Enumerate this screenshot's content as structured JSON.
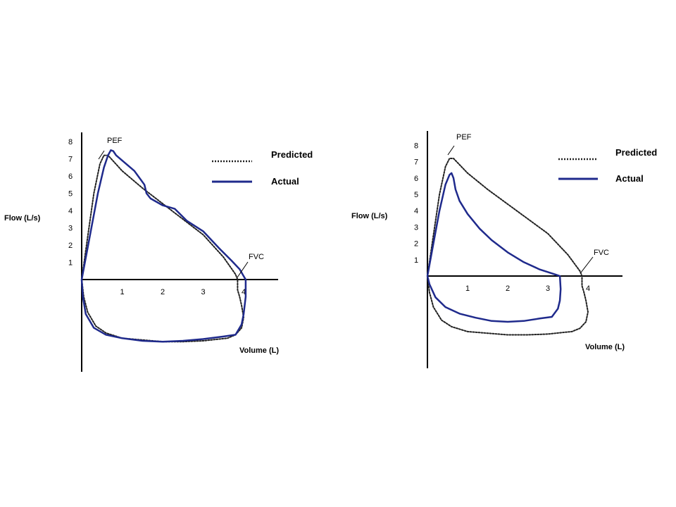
{
  "colors": {
    "predicted": "#222222",
    "actual": "#1f2a8c",
    "axis": "#000000"
  },
  "chart_data": [
    {
      "type": "line",
      "title": "",
      "xlabel": "Volume (L)",
      "ylabel": "Flow (L/s)",
      "xticks": [
        "1",
        "2",
        "3",
        "4"
      ],
      "yticks": [
        "1",
        "2",
        "3",
        "4",
        "5",
        "6",
        "7",
        "8"
      ],
      "xlim": [
        0,
        4.7
      ],
      "ylim": [
        -5.3,
        8.4
      ],
      "legend": {
        "position": "top-right",
        "items": [
          "Predicted",
          "Actual"
        ]
      },
      "annotations": [
        "PEF",
        "FVC"
      ],
      "series": [
        {
          "name": "Predicted",
          "style": "dotted",
          "x": [
            0,
            0.15,
            0.3,
            0.45,
            0.55,
            0.65,
            1.0,
            1.5,
            2.0,
            2.5,
            3.0,
            3.5,
            3.8,
            3.85,
            3.85,
            3.9,
            3.95,
            4.0,
            3.95,
            3.8,
            3.6,
            3.4,
            3.0,
            2.5,
            2.0,
            1.5,
            1.0,
            0.6,
            0.35,
            0.15,
            0.05,
            0
          ],
          "y": [
            0,
            2.5,
            5.0,
            6.7,
            7.2,
            7.2,
            6.3,
            5.3,
            4.4,
            3.5,
            2.6,
            1.3,
            0.3,
            0,
            -0.6,
            -1.0,
            -1.5,
            -2.2,
            -2.8,
            -3.2,
            -3.4,
            -3.45,
            -3.55,
            -3.6,
            -3.6,
            -3.5,
            -3.4,
            -3.1,
            -2.7,
            -1.9,
            -1.0,
            0
          ]
        },
        {
          "name": "Actual",
          "style": "solid",
          "x": [
            0,
            0.2,
            0.4,
            0.55,
            0.65,
            0.72,
            0.78,
            0.85,
            1.0,
            1.3,
            1.55,
            1.6,
            1.7,
            2.0,
            2.3,
            2.6,
            3.0,
            3.4,
            3.7,
            3.9,
            4.0,
            4.05,
            4.05,
            4.0,
            3.95,
            3.8,
            3.5,
            3.0,
            2.5,
            2.0,
            1.5,
            1.0,
            0.6,
            0.3,
            0.1,
            0.03,
            0
          ],
          "y": [
            0,
            2.5,
            5.0,
            6.5,
            7.2,
            7.5,
            7.45,
            7.2,
            6.9,
            6.3,
            5.5,
            5.0,
            4.7,
            4.3,
            4.1,
            3.4,
            2.8,
            1.8,
            1.1,
            0.6,
            0.2,
            0,
            -1.0,
            -2.0,
            -2.6,
            -3.2,
            -3.3,
            -3.45,
            -3.55,
            -3.6,
            -3.55,
            -3.4,
            -3.2,
            -2.8,
            -2.0,
            -1.0,
            0
          ]
        }
      ]
    },
    {
      "type": "line",
      "title": "",
      "xlabel": "Volume (L)",
      "ylabel": "Flow (L/s)",
      "xticks": [
        "1",
        "2",
        "3",
        "4"
      ],
      "yticks": [
        "1",
        "2",
        "3",
        "4",
        "5",
        "6",
        "7",
        "8"
      ],
      "xlim": [
        0,
        4.7
      ],
      "ylim": [
        -5.3,
        8.4
      ],
      "legend": {
        "position": "top-right",
        "items": [
          "Predicted",
          "Actual"
        ]
      },
      "annotations": [
        "PEF",
        "FVC"
      ],
      "series": [
        {
          "name": "Predicted",
          "style": "dotted",
          "x": [
            0,
            0.15,
            0.3,
            0.45,
            0.55,
            0.65,
            1.0,
            1.5,
            2.0,
            2.5,
            3.0,
            3.5,
            3.8,
            3.85,
            3.85,
            3.9,
            3.95,
            4.0,
            3.95,
            3.8,
            3.6,
            3.4,
            3.0,
            2.5,
            2.0,
            1.5,
            1.0,
            0.6,
            0.35,
            0.15,
            0.05,
            0
          ],
          "y": [
            0,
            2.5,
            5.0,
            6.7,
            7.2,
            7.2,
            6.3,
            5.3,
            4.4,
            3.5,
            2.6,
            1.3,
            0.3,
            0,
            -0.6,
            -1.0,
            -1.5,
            -2.2,
            -2.8,
            -3.2,
            -3.4,
            -3.45,
            -3.55,
            -3.6,
            -3.6,
            -3.5,
            -3.4,
            -3.1,
            -2.7,
            -1.9,
            -1.0,
            0
          ]
        },
        {
          "name": "Actual",
          "style": "solid",
          "x": [
            0,
            0.15,
            0.3,
            0.45,
            0.55,
            0.6,
            0.65,
            0.7,
            0.8,
            1.0,
            1.3,
            1.6,
            2.0,
            2.4,
            2.8,
            3.2,
            3.3,
            3.32,
            3.3,
            3.25,
            3.1,
            2.8,
            2.4,
            2.0,
            1.6,
            1.2,
            0.8,
            0.45,
            0.2,
            0.05,
            0
          ],
          "y": [
            0,
            2.0,
            4.0,
            5.6,
            6.2,
            6.3,
            6.0,
            5.3,
            4.6,
            3.8,
            2.9,
            2.2,
            1.45,
            0.85,
            0.4,
            0.08,
            0,
            -0.8,
            -1.5,
            -2.0,
            -2.5,
            -2.6,
            -2.75,
            -2.8,
            -2.75,
            -2.55,
            -2.3,
            -1.9,
            -1.3,
            -0.5,
            0
          ]
        }
      ]
    }
  ]
}
